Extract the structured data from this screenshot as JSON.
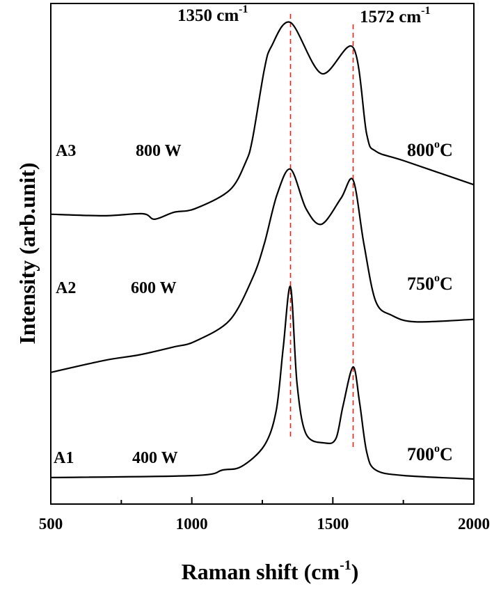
{
  "chart_data": {
    "type": "line",
    "title": "",
    "xlabel": "Raman shift (cm",
    "xlabel_sup": "-1",
    "xlabel_end": ")",
    "ylabel": "Intensity (arb.unit)",
    "xlim": [
      500,
      2000
    ],
    "ylim": [
      0,
      100
    ],
    "y_ticks_shown": false,
    "grid": false,
    "x_ticks": [
      "500",
      "1000",
      "1500",
      "2000"
    ],
    "x_tick_values": [
      500,
      1000,
      1500,
      2000
    ],
    "x_minor_tick_values": [
      750,
      1250,
      1750
    ],
    "line_color": "#000000",
    "reference_color": "#e8231e",
    "reference_lines": [
      {
        "x": 1350,
        "label": "1350 cm",
        "sup": "-1"
      },
      {
        "x": 1572,
        "label": "1572 cm",
        "sup": "-1"
      }
    ],
    "series": [
      {
        "sample": "A3",
        "power": "800 W",
        "temperature": "800",
        "temp_unit": "C",
        "degree": "o",
        "points": [
          [
            500,
            57.9
          ],
          [
            690,
            57.6
          ],
          [
            826,
            58.0
          ],
          [
            868,
            56.9
          ],
          [
            937,
            58.3
          ],
          [
            1011,
            59.0
          ],
          [
            1134,
            62.7
          ],
          [
            1191,
            68.3
          ],
          [
            1215,
            72.9
          ],
          [
            1257,
            86.8
          ],
          [
            1282,
            91.4
          ],
          [
            1350,
            96.2
          ],
          [
            1460,
            86.0
          ],
          [
            1572,
            91.2
          ],
          [
            1620,
            73.9
          ],
          [
            1652,
            70.5
          ],
          [
            1751,
            68.6
          ],
          [
            2000,
            63.8
          ]
        ]
      },
      {
        "sample": "A2",
        "power": "600 W",
        "temperature": "750",
        "temp_unit": "C",
        "degree": "o",
        "points": [
          [
            500,
            26.3
          ],
          [
            690,
            28.7
          ],
          [
            813,
            29.8
          ],
          [
            937,
            31.4
          ],
          [
            1011,
            32.5
          ],
          [
            1134,
            36.7
          ],
          [
            1215,
            45.1
          ],
          [
            1257,
            52.0
          ],
          [
            1302,
            61.8
          ],
          [
            1350,
            66.9
          ],
          [
            1405,
            59.0
          ],
          [
            1460,
            55.9
          ],
          [
            1529,
            61.1
          ],
          [
            1572,
            64.7
          ],
          [
            1610,
            52.0
          ],
          [
            1652,
            40.5
          ],
          [
            1709,
            37.7
          ],
          [
            1793,
            36.4
          ],
          [
            2000,
            36.9
          ]
        ]
      },
      {
        "sample": "A1",
        "power": "400 W",
        "temperature": "700",
        "temp_unit": "C",
        "degree": "o",
        "points": [
          [
            500,
            5.3
          ],
          [
            1011,
            5.7
          ],
          [
            1109,
            6.8
          ],
          [
            1176,
            7.5
          ],
          [
            1257,
            11.7
          ],
          [
            1299,
            18.6
          ],
          [
            1324,
            31.2
          ],
          [
            1350,
            43.4
          ],
          [
            1373,
            24.1
          ],
          [
            1405,
            14.0
          ],
          [
            1472,
            12.2
          ],
          [
            1511,
            13.1
          ],
          [
            1536,
            19.6
          ],
          [
            1572,
            27.4
          ],
          [
            1595,
            20.2
          ],
          [
            1620,
            10.4
          ],
          [
            1652,
            6.8
          ],
          [
            1751,
            5.7
          ],
          [
            2000,
            5.0
          ]
        ]
      }
    ]
  }
}
